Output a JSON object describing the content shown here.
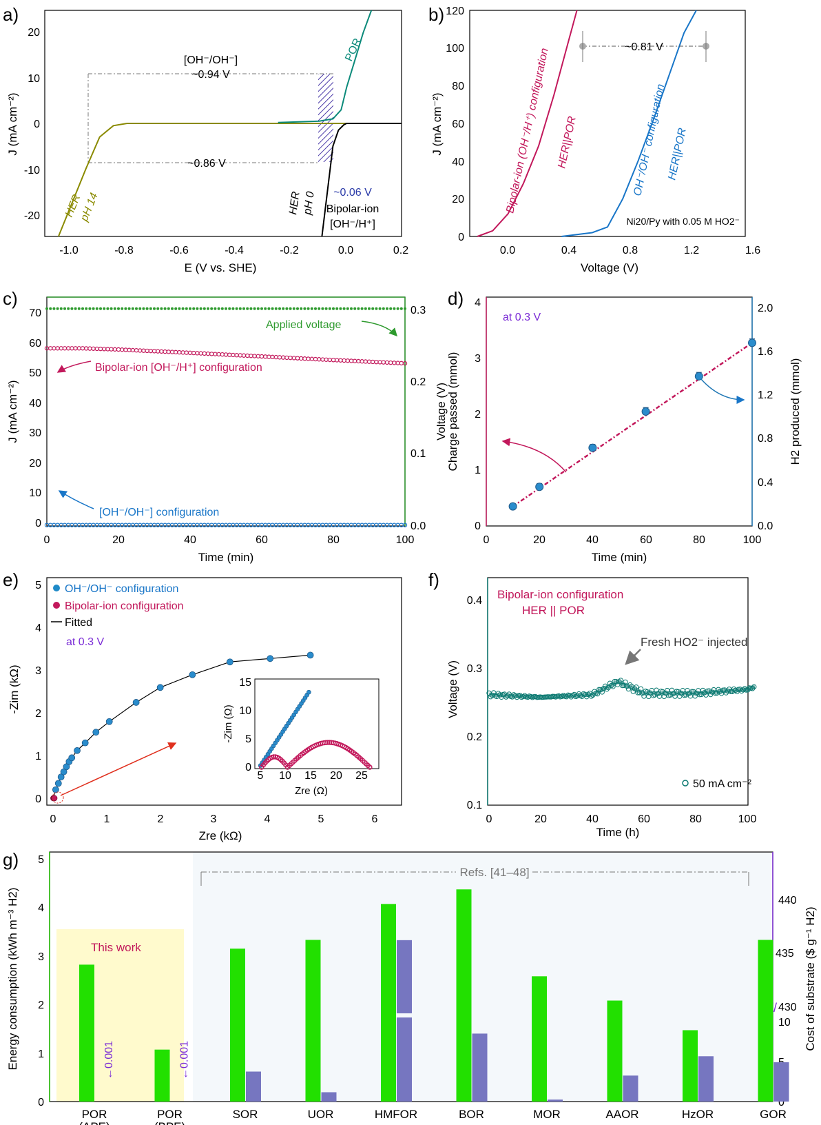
{
  "panels": {
    "a": {
      "label": "a)",
      "xlabel": "E (V vs. SHE)",
      "ylabel": "J (mA cm⁻²)",
      "xticks": [
        "-1.0",
        "-0.8",
        "-0.6",
        "-0.4",
        "-0.2",
        "0.0",
        "0.2"
      ],
      "yticks": [
        "-20",
        "-10",
        "0",
        "10",
        "20"
      ],
      "xlim": [
        -1.1,
        0.2
      ],
      "ylim": [
        -25,
        25
      ],
      "annotations": {
        "top_label": "[OH⁻/OH⁻]",
        "v094": "~0.94 V",
        "v086": "~0.86 V",
        "v006": "~0.06 V",
        "bipolar1": "Bipolar-ion",
        "bipolar2": "[OH⁻/H⁺]",
        "por": "POR",
        "her14_1": "HER",
        "her14_2": "pH 14",
        "her0_1": "HER",
        "her0_2": "pH 0"
      }
    },
    "b": {
      "label": "b)",
      "xlabel": "Voltage (V)",
      "ylabel": "J (mA cm⁻²)",
      "xticks": [
        "0.0",
        "0.4",
        "0.8",
        "1.2",
        "1.6"
      ],
      "yticks": [
        "0",
        "20",
        "40",
        "60",
        "80",
        "100",
        "120"
      ],
      "xlim": [
        -0.1,
        1.7
      ],
      "ylim": [
        0,
        120
      ],
      "annotations": {
        "v081": "~0.81 V",
        "bip1": "Bipolar-ion (OH⁻/H⁺) configuration",
        "bip2": "HER||POR",
        "oh1": "OH⁻/OH⁻ configuration",
        "oh2": "HER||POR",
        "note": "Ni20/Py with 0.05 M HO2⁻"
      }
    },
    "c": {
      "label": "c)",
      "xlabel": "Time (min)",
      "ylabel": "J (mA cm⁻²)",
      "ylabel2": "Voltage (V)",
      "xticks": [
        "0",
        "20",
        "40",
        "60",
        "80",
        "100"
      ],
      "yticks": [
        "0",
        "10",
        "20",
        "30",
        "40",
        "50",
        "60",
        "70"
      ],
      "y2ticks": [
        "0.0",
        "0.1",
        "0.2",
        "0.3"
      ],
      "annotations": {
        "applied": "Applied voltage",
        "bipolar": "Bipolar-ion [OH⁻/H⁺] configuration",
        "ohoh": "[OH⁻/OH⁻] configuration"
      }
    },
    "d": {
      "label": "d)",
      "xlabel": "Time (min)",
      "ylabel": "Charge passed (mmol)",
      "ylabel2": "H2 produced (mmol)",
      "xticks": [
        "0",
        "20",
        "40",
        "60",
        "80",
        "100"
      ],
      "yticks": [
        "0",
        "1",
        "2",
        "3",
        "4"
      ],
      "y2ticks": [
        "0.0",
        "0.4",
        "0.8",
        "1.2",
        "1.6",
        "2.0"
      ],
      "annotations": {
        "at": "at 0.3 V"
      }
    },
    "e": {
      "label": "e)",
      "xlabel": "Zre (kΩ)",
      "ylabel": "-Zim (kΩ)",
      "xticks": [
        "0",
        "1",
        "2",
        "3",
        "4",
        "5",
        "6"
      ],
      "yticks": [
        "0",
        "1",
        "2",
        "3",
        "4",
        "5"
      ],
      "legend": [
        "OH⁻/OH⁻ configuration",
        "Bipolar-ion configuration",
        "Fitted"
      ],
      "at": "at 0.3 V",
      "inset": {
        "xlabel": "Zre (Ω)",
        "ylabel": "-Zim (Ω)",
        "xticks": [
          "5",
          "10",
          "15",
          "20",
          "25"
        ],
        "yticks": [
          "0",
          "5",
          "10",
          "15"
        ]
      }
    },
    "f": {
      "label": "f)",
      "xlabel": "Time (h)",
      "ylabel": "Voltage (V)",
      "xticks": [
        "0",
        "20",
        "40",
        "60",
        "80",
        "100"
      ],
      "yticks": [
        "0.1",
        "0.2",
        "0.3",
        "0.4"
      ],
      "title1": "Bipolar-ion configuration",
      "title2": "HER || POR",
      "injected": "Fresh HO2⁻ injected",
      "legend": "50 mA cm⁻²"
    },
    "g": {
      "label": "g)",
      "ylabel": "Energy consumption (kWh m⁻³ H2)",
      "ylabel2": "Cost of substrate ($ g⁻¹ H2)",
      "yticks": [
        "0",
        "1",
        "2",
        "3",
        "4",
        "5"
      ],
      "y2ticks_low": [
        "0",
        "5",
        "10"
      ],
      "y2ticks_high": [
        "430",
        "435",
        "440"
      ],
      "this_work": "This work",
      "refs": "Refs. [41–48]",
      "note": "←0.001"
    }
  },
  "chart_data": [
    {
      "type": "line",
      "panel": "a",
      "series": [
        {
          "name": "HER pH 14",
          "x": [
            -1.05,
            -0.95,
            -0.9,
            -0.85,
            -0.8,
            -0.7,
            -0.5,
            -0.2,
            0.0,
            0.2
          ],
          "y": [
            -25,
            -10,
            -3,
            -0.5,
            0,
            0,
            0,
            0,
            0,
            0
          ]
        },
        {
          "name": "HER pH 0",
          "x": [
            -0.09,
            -0.07,
            -0.05,
            -0.03,
            -0.01,
            0.0,
            0.1,
            0.2
          ],
          "y": [
            -25,
            -15,
            -5,
            -1.5,
            -0.3,
            0,
            0,
            0
          ]
        },
        {
          "name": "POR",
          "x": [
            -0.25,
            -0.1,
            -0.05,
            -0.02,
            0.0,
            0.03,
            0.06,
            0.09
          ],
          "y": [
            0.2,
            0.5,
            1.0,
            3,
            8,
            14,
            20,
            25
          ]
        }
      ]
    },
    {
      "type": "line",
      "panel": "b",
      "series": [
        {
          "name": "Bipolar-ion (OH⁻/H⁺) configuration",
          "x": [
            -0.05,
            0.05,
            0.15,
            0.25,
            0.35,
            0.45,
            0.55,
            0.6
          ],
          "y": [
            0,
            3,
            12,
            28,
            48,
            75,
            105,
            120
          ]
        },
        {
          "name": "OH⁻/OH⁻ configuration",
          "x": [
            0.5,
            0.7,
            0.8,
            0.9,
            1.0,
            1.1,
            1.2,
            1.3,
            1.38
          ],
          "y": [
            0,
            2,
            5,
            20,
            40,
            62,
            85,
            108,
            120
          ]
        }
      ]
    },
    {
      "type": "line",
      "panel": "c",
      "series": [
        {
          "name": "Bipolar-ion [OH⁻/H⁺] configuration",
          "x": [
            0,
            10,
            20,
            40,
            60,
            80,
            100
          ],
          "y": [
            59,
            59,
            58.6,
            57.5,
            56.3,
            55.1,
            54
          ]
        },
        {
          "name": "[OH⁻/OH⁻] configuration",
          "x": [
            0,
            100
          ],
          "y": [
            0.3,
            0.3
          ]
        },
        {
          "name": "Applied voltage",
          "x": [
            0,
            100
          ],
          "y": [
            0.3,
            0.3
          ]
        }
      ]
    },
    {
      "type": "scatter",
      "panel": "d",
      "x": [
        10,
        20,
        40,
        60,
        80,
        100
      ],
      "y": [
        0.35,
        0.7,
        1.4,
        2.05,
        2.68,
        3.28
      ],
      "y_err": [
        0.05,
        0.06,
        0.06,
        0.07,
        0.07,
        0.07
      ]
    },
    {
      "type": "scatter",
      "panel": "e",
      "series": [
        {
          "name": "OH⁻/OH⁻ configuration",
          "x": [
            0.05,
            0.1,
            0.15,
            0.2,
            0.25,
            0.3,
            0.35,
            0.45,
            0.6,
            0.8,
            1.05,
            1.55,
            2.0,
            2.6,
            3.3,
            4.05,
            4.8
          ],
          "y": [
            0.2,
            0.35,
            0.5,
            0.62,
            0.74,
            0.86,
            0.95,
            1.12,
            1.3,
            1.55,
            1.8,
            2.25,
            2.6,
            2.9,
            3.2,
            3.28,
            3.36
          ]
        },
        {
          "name": "Bipolar-ion configuration",
          "x": [
            0.006,
            0.01,
            0.015,
            0.02,
            0.025
          ],
          "y": [
            0.001,
            0.003,
            0.004,
            0.004,
            0.001
          ]
        }
      ]
    },
    {
      "type": "scatter",
      "panel": "f",
      "series": [
        {
          "name": "50 mA cm⁻²",
          "x": [
            0,
            20,
            40,
            50,
            60,
            80,
            100,
            103
          ],
          "y": [
            0.27,
            0.266,
            0.27,
            0.29,
            0.272,
            0.272,
            0.278,
            0.282
          ]
        }
      ]
    },
    {
      "type": "bar",
      "panel": "g",
      "categories": [
        "POR (APE)",
        "POR (BPE)",
        "SOR",
        "UOR",
        "HMFOR",
        "BOR",
        "MOR",
        "AAOR",
        "HzOR",
        "GOR"
      ],
      "series": [
        {
          "name": "Energy consumption",
          "values": [
            2.82,
            1.07,
            3.15,
            3.33,
            4.07,
            4.37,
            2.58,
            2.08,
            1.47,
            3.33
          ]
        },
        {
          "name": "Cost of substrate",
          "values": [
            0.001,
            0.001,
            4.5,
            1.4,
            436.5,
            10.2,
            0.3,
            3.9,
            6.8,
            5.9
          ]
        }
      ]
    }
  ],
  "colors": {
    "her14": "#8a8a00",
    "por": "#0b8a7a",
    "bipolar": "#c2185b",
    "ohoh": "#1976c8",
    "green": "#2e9a2e",
    "teal": "#0d7a72",
    "purple": "#7b2cd6",
    "bargreen": "#22e000",
    "barpurple": "#7676c0"
  }
}
